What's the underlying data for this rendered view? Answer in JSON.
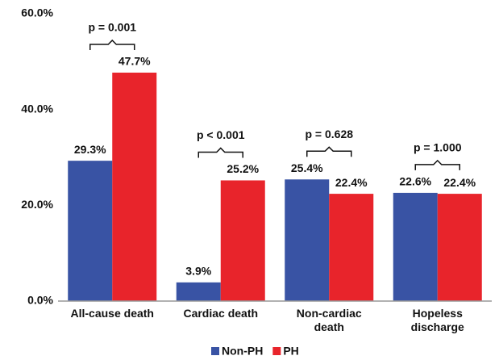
{
  "chart_data": {
    "type": "bar",
    "categories": [
      "All-cause death",
      "Cardiac death",
      "Non-cardiac\ndeath",
      "Hopeless\ndischarge"
    ],
    "series": [
      {
        "name": "Non-PH",
        "color": "#3953a4",
        "values": [
          29.3,
          3.9,
          25.4,
          22.6
        ],
        "value_labels": [
          "29.3%",
          "3.9%",
          "25.4%",
          "22.6%"
        ]
      },
      {
        "name": "PH",
        "color": "#e8242b",
        "values": [
          47.7,
          25.2,
          22.4,
          22.4
        ],
        "value_labels": [
          "47.7%",
          "25.2%",
          "22.4%",
          "22.4%"
        ]
      }
    ],
    "annotations": [
      "p = 0.001",
      "p < 0.001",
      "p = 0.628",
      "p = 1.000"
    ],
    "ylim": [
      0,
      60
    ],
    "yticks": [
      {
        "value": 0,
        "label": "0.0%"
      },
      {
        "value": 20,
        "label": "20.0%"
      },
      {
        "value": 40,
        "label": "40.0%"
      },
      {
        "value": 60,
        "label": "60.0%"
      }
    ],
    "grid": false,
    "legend": "bottom"
  }
}
